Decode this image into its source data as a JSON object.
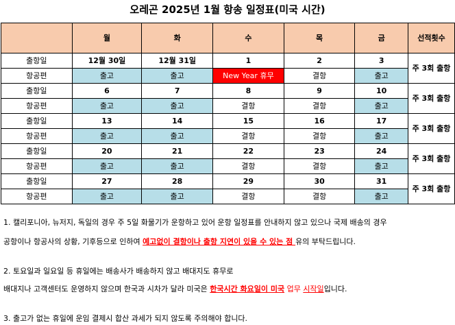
{
  "title": "오레곤 2025년 1월 항송 일정표(미국 시간)",
  "header": {
    "blank": "",
    "days": [
      "월",
      "화",
      "수",
      "목",
      "금"
    ],
    "count_col": "선적횟수"
  },
  "labels": {
    "date": "출항일",
    "flight": "항공편"
  },
  "weeks": [
    {
      "dates": [
        "12월 30일",
        "12월 31일",
        "1",
        "2",
        "3"
      ],
      "flights": [
        "출고",
        "출고",
        "New Year 휴무",
        "결항",
        "출고"
      ],
      "count": "주 3회 출항"
    },
    {
      "dates": [
        "6",
        "7",
        "8",
        "9",
        "10"
      ],
      "flights": [
        "출고",
        "출고",
        "결항",
        "결항",
        "출고"
      ],
      "count": "주 3회 출항"
    },
    {
      "dates": [
        "13",
        "14",
        "15",
        "16",
        "17"
      ],
      "flights": [
        "출고",
        "출고",
        "결항",
        "결항",
        "출고"
      ],
      "count": "주 3회 출항"
    },
    {
      "dates": [
        "20",
        "21",
        "22",
        "23",
        "24"
      ],
      "flights": [
        "출고",
        "출고",
        "결항",
        "결항",
        "출고"
      ],
      "count": "주 3회 출항"
    },
    {
      "dates": [
        "27",
        "28",
        "29",
        "30",
        "31"
      ],
      "flights": [
        "출고",
        "출고",
        "결항",
        "결항",
        "출고"
      ],
      "count": "주 3회 출항"
    }
  ],
  "colors": {
    "header_bg": "#f8cbad",
    "dispatch_bg": "#b7dee8",
    "holiday_bg": "#ff0000"
  },
  "notes": {
    "n1_line1": "1. 캘리포니아, 뉴저지, 독일의 경우 주 5일 화물기가 운항하고 있어 운항 일정표를 안내하지 않고 있으나 국제 배송의 경우",
    "n1_line2_pre": "공항이나 항공사의 상황, 기후등으로 인하여 ",
    "n1_line2_hl": "예고없이 결항이나 출항 지연이 있을 수 있는 점 ",
    "n1_line2_post": "유의 부탁드립니다.",
    "n2_line1": "2. 토요일과 일요일 등 휴일에는 배송사가 배송하지 않고 배대지도 휴무로",
    "n2_line2_pre": "배대지나 고객센터도 운영하지 않으며 한국과 시차가 달라 미국은 ",
    "n2_line2_hl1": "한국시간 화요일이 미국",
    "n2_line2_mid": " 업무 ",
    "n2_line2_hl2": "시작일",
    "n2_line2_post": "입니다.",
    "n3": "3. 출고가 없는 휴일에 운임 결제시 합산 과세가 되지 않도록 주의해야 합니다."
  }
}
